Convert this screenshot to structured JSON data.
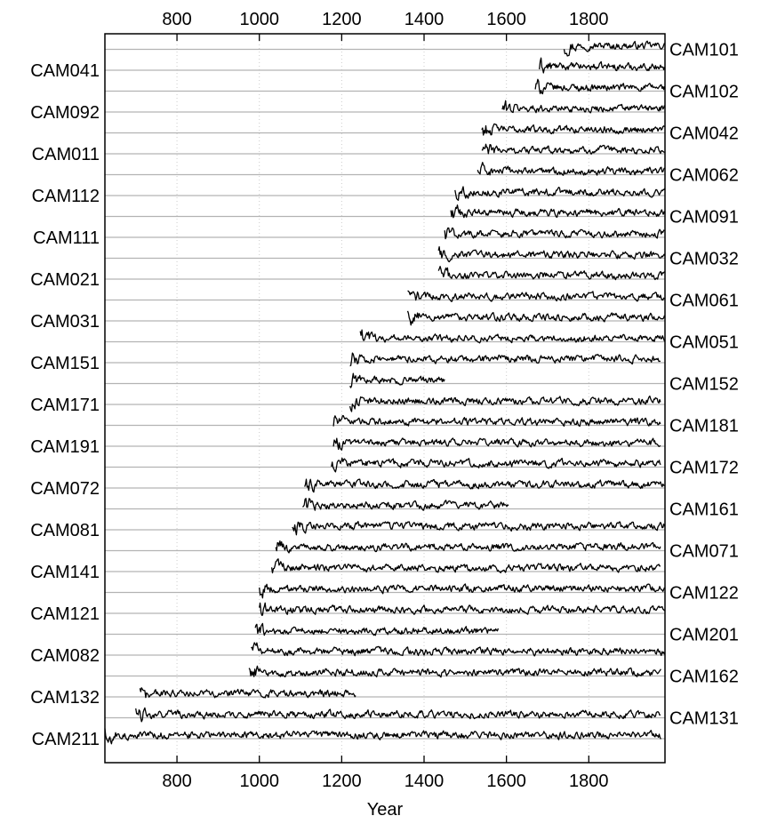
{
  "chart_data": {
    "type": "line",
    "title": "",
    "xlabel": "Year",
    "ylabel": "",
    "xlim": [
      625,
      1985
    ],
    "xticks": [
      800,
      1000,
      1200,
      1400,
      1600,
      1800
    ],
    "grid": true,
    "legend": "none",
    "line_color": "#000000",
    "baseline_color": "#b3b3b3",
    "series_order_top_to_bottom": true,
    "series": [
      {
        "name": "CAM101",
        "start": 1740,
        "end": 1985,
        "label_side": "right"
      },
      {
        "name": "CAM041",
        "start": 1680,
        "end": 1985,
        "label_side": "left"
      },
      {
        "name": "CAM102",
        "start": 1670,
        "end": 1985,
        "label_side": "right"
      },
      {
        "name": "CAM092",
        "start": 1590,
        "end": 1985,
        "label_side": "left"
      },
      {
        "name": "CAM042",
        "start": 1540,
        "end": 1985,
        "label_side": "right"
      },
      {
        "name": "CAM011",
        "start": 1540,
        "end": 1985,
        "label_side": "left"
      },
      {
        "name": "CAM062",
        "start": 1530,
        "end": 1985,
        "label_side": "right"
      },
      {
        "name": "CAM112",
        "start": 1475,
        "end": 1985,
        "label_side": "left"
      },
      {
        "name": "CAM091",
        "start": 1465,
        "end": 1985,
        "label_side": "right"
      },
      {
        "name": "CAM111",
        "start": 1450,
        "end": 1985,
        "label_side": "left"
      },
      {
        "name": "CAM032",
        "start": 1435,
        "end": 1985,
        "label_side": "right"
      },
      {
        "name": "CAM021",
        "start": 1435,
        "end": 1985,
        "label_side": "left"
      },
      {
        "name": "CAM061",
        "start": 1360,
        "end": 1985,
        "label_side": "right"
      },
      {
        "name": "CAM031",
        "start": 1360,
        "end": 1985,
        "label_side": "left"
      },
      {
        "name": "CAM051",
        "start": 1245,
        "end": 1985,
        "label_side": "right"
      },
      {
        "name": "CAM151",
        "start": 1220,
        "end": 1975,
        "label_side": "left"
      },
      {
        "name": "CAM152",
        "start": 1220,
        "end": 1450,
        "label_side": "right"
      },
      {
        "name": "CAM171",
        "start": 1220,
        "end": 1975,
        "label_side": "left"
      },
      {
        "name": "CAM181",
        "start": 1180,
        "end": 1975,
        "label_side": "right"
      },
      {
        "name": "CAM191",
        "start": 1180,
        "end": 1975,
        "label_side": "left"
      },
      {
        "name": "CAM172",
        "start": 1175,
        "end": 1975,
        "label_side": "right"
      },
      {
        "name": "CAM072",
        "start": 1110,
        "end": 1985,
        "label_side": "left"
      },
      {
        "name": "CAM161",
        "start": 1105,
        "end": 1605,
        "label_side": "right"
      },
      {
        "name": "CAM081",
        "start": 1080,
        "end": 1985,
        "label_side": "left"
      },
      {
        "name": "CAM071",
        "start": 1040,
        "end": 1975,
        "label_side": "right"
      },
      {
        "name": "CAM141",
        "start": 1030,
        "end": 1975,
        "label_side": "left"
      },
      {
        "name": "CAM122",
        "start": 1000,
        "end": 1985,
        "label_side": "right"
      },
      {
        "name": "CAM121",
        "start": 1000,
        "end": 1985,
        "label_side": "left"
      },
      {
        "name": "CAM201",
        "start": 990,
        "end": 1580,
        "label_side": "right"
      },
      {
        "name": "CAM082",
        "start": 980,
        "end": 1985,
        "label_side": "left"
      },
      {
        "name": "CAM162",
        "start": 975,
        "end": 1975,
        "label_side": "right"
      },
      {
        "name": "CAM132",
        "start": 710,
        "end": 1235,
        "label_side": "left"
      },
      {
        "name": "CAM131",
        "start": 700,
        "end": 1975,
        "label_side": "right"
      },
      {
        "name": "CAM211",
        "start": 625,
        "end": 1975,
        "label_side": "left"
      }
    ]
  }
}
